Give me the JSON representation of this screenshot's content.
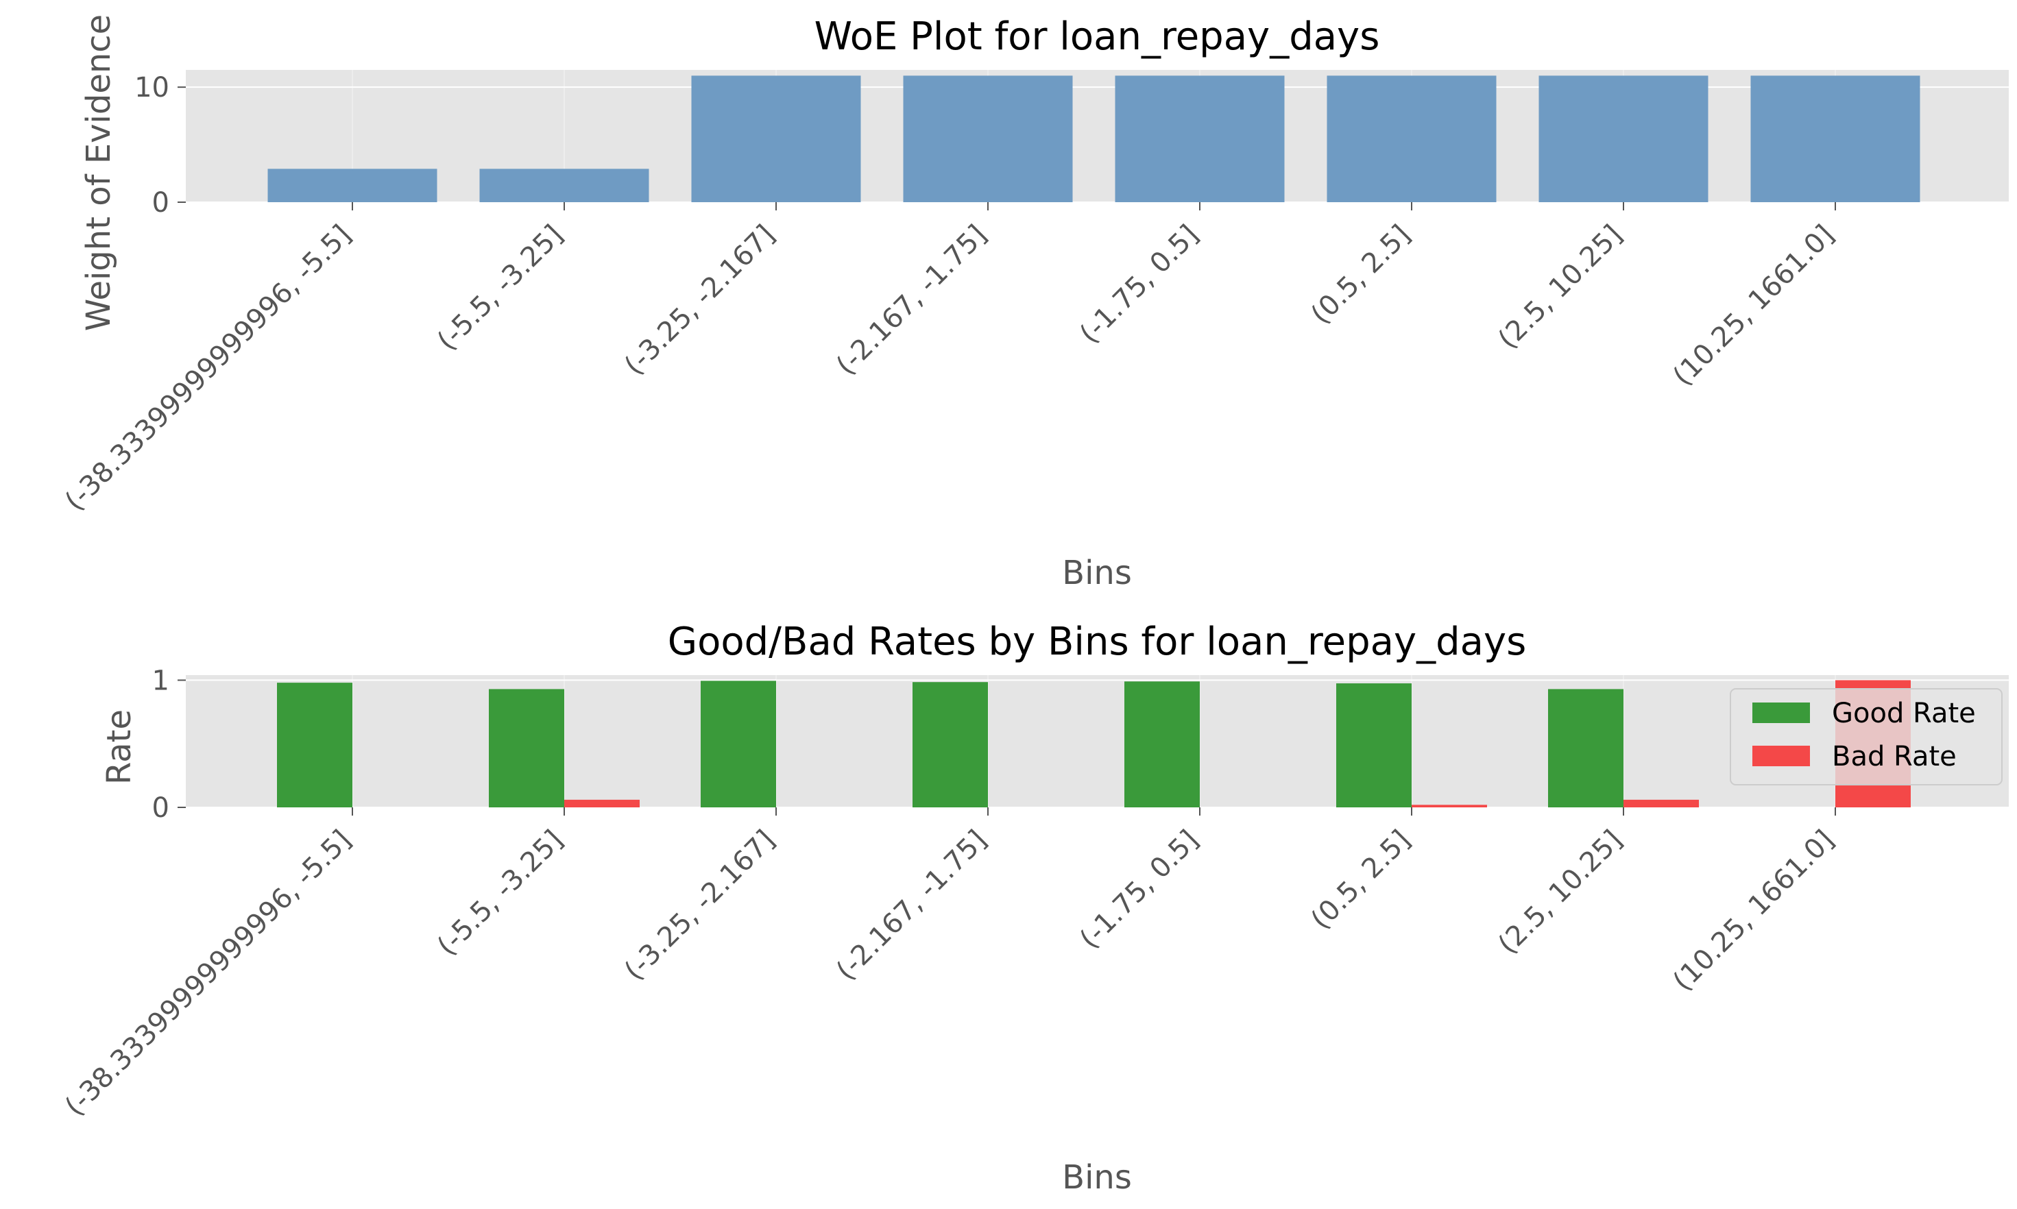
{
  "chart_data": [
    {
      "type": "bar",
      "title": "WoE Plot for loan_repay_days",
      "xlabel": "Bins",
      "ylabel": "Weight of Evidence",
      "categories": [
        "(-38.33399999999996, -5.5]",
        "(-5.5, -3.25]",
        "(-3.25, -2.167]",
        "(-2.167, -1.75]",
        "(-1.75, 0.5]",
        "(0.5, 2.5]",
        "(2.5, 10.25]",
        "(10.25, 1661.0]"
      ],
      "values": [
        2.9,
        2.9,
        11.0,
        11.0,
        11.0,
        11.0,
        11.0,
        11.0
      ],
      "ylim": [
        0,
        11.5
      ],
      "yticks": [
        "0",
        "10"
      ],
      "grid": true,
      "color": "#6f9bc3"
    },
    {
      "type": "bar",
      "title": "Good/Bad Rates by Bins for loan_repay_days",
      "xlabel": "Bins",
      "ylabel": "Rate",
      "categories": [
        "(-38.33399999999996, -5.5]",
        "(-5.5, -3.25]",
        "(-3.25, -2.167]",
        "(-2.167, -1.75]",
        "(-1.75, 0.5]",
        "(0.5, 2.5]",
        "(2.5, 10.25]",
        "(10.25, 1661.0]"
      ],
      "series": [
        {
          "name": "Good Rate",
          "color": "#3a9a3a",
          "values": [
            0.98,
            0.93,
            0.995,
            0.985,
            0.99,
            0.975,
            0.93,
            0.0
          ]
        },
        {
          "name": "Bad Rate",
          "color": "#f44848",
          "values": [
            0.0,
            0.06,
            0.0,
            0.0,
            0.0,
            0.02,
            0.06,
            1.0
          ]
        }
      ],
      "ylim": [
        0,
        1.04
      ],
      "yticks": [
        "0",
        "1"
      ],
      "grid": true,
      "legend": "top-right"
    }
  ]
}
